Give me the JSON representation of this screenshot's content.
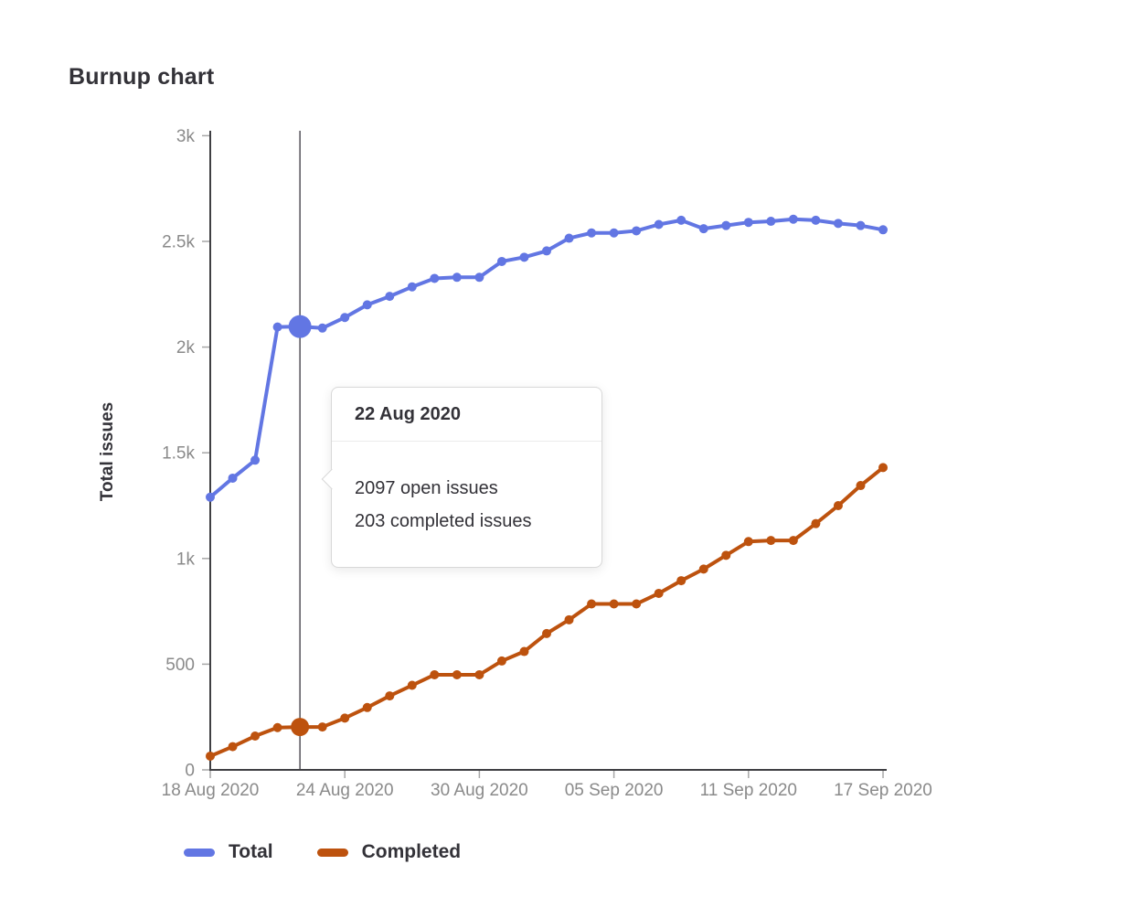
{
  "page": {
    "title": "Burnup chart"
  },
  "tooltip": {
    "date": "22 Aug 2020",
    "open_issues": "2097 open issues",
    "completed_issues": "203 completed issues"
  },
  "legend": [
    {
      "label": "Total"
    },
    {
      "label": "Completed"
    }
  ],
  "chart_data": {
    "type": "line",
    "title": "Burnup chart",
    "xlabel": "",
    "ylabel": "Total issues",
    "ylim": [
      0,
      3000
    ],
    "grid": false,
    "legend_position": "bottom-left",
    "colors": {
      "axis": "#3f3f43",
      "tick": "#a7a7a7",
      "tick_label": "#8a8a8a",
      "hover_line": "#54535a",
      "total": "#6276e3",
      "completed": "#bd520e"
    },
    "x": [
      "18 Aug 2020",
      "19 Aug 2020",
      "20 Aug 2020",
      "21 Aug 2020",
      "22 Aug 2020",
      "23 Aug 2020",
      "24 Aug 2020",
      "25 Aug 2020",
      "26 Aug 2020",
      "27 Aug 2020",
      "28 Aug 2020",
      "29 Aug 2020",
      "30 Aug 2020",
      "31 Aug 2020",
      "01 Sep 2020",
      "02 Sep 2020",
      "03 Sep 2020",
      "04 Sep 2020",
      "05 Sep 2020",
      "06 Sep 2020",
      "07 Sep 2020",
      "08 Sep 2020",
      "09 Sep 2020",
      "10 Sep 2020",
      "11 Sep 2020",
      "12 Sep 2020",
      "13 Sep 2020",
      "14 Sep 2020",
      "15 Sep 2020",
      "16 Sep 2020",
      "17 Sep 2020"
    ],
    "series": [
      {
        "name": "Total",
        "color": "#6276e3",
        "values": [
          1290,
          1380,
          1465,
          2095,
          2097,
          2090,
          2140,
          2200,
          2240,
          2285,
          2325,
          2330,
          2330,
          2405,
          2425,
          2455,
          2515,
          2540,
          2540,
          2550,
          2580,
          2600,
          2560,
          2575,
          2590,
          2595,
          2605,
          2600,
          2585,
          2575,
          2555
        ]
      },
      {
        "name": "Completed",
        "color": "#bd520e",
        "values": [
          65,
          110,
          160,
          200,
          203,
          203,
          245,
          295,
          350,
          400,
          450,
          450,
          450,
          515,
          560,
          645,
          710,
          785,
          785,
          785,
          835,
          895,
          950,
          1015,
          1080,
          1085,
          1085,
          1165,
          1250,
          1345,
          1430
        ]
      }
    ],
    "y_ticks": [
      {
        "value": 0,
        "label": "0"
      },
      {
        "value": 500,
        "label": "500"
      },
      {
        "value": 1000,
        "label": "1k"
      },
      {
        "value": 1500,
        "label": "1.5k"
      },
      {
        "value": 2000,
        "label": "2k"
      },
      {
        "value": 2500,
        "label": "2.5k"
      },
      {
        "value": 3000,
        "label": "3k"
      }
    ],
    "x_ticks": [
      {
        "index": 0,
        "label": "18 Aug 2020"
      },
      {
        "index": 6,
        "label": "24 Aug 2020"
      },
      {
        "index": 12,
        "label": "30 Aug 2020"
      },
      {
        "index": 18,
        "label": "05 Sep 2020"
      },
      {
        "index": 24,
        "label": "11 Sep 2020"
      },
      {
        "index": 30,
        "label": "17 Sep 2020"
      }
    ],
    "highlight": {
      "index": 4,
      "date": "22 Aug 2020",
      "total": 2097,
      "completed": 203
    }
  }
}
